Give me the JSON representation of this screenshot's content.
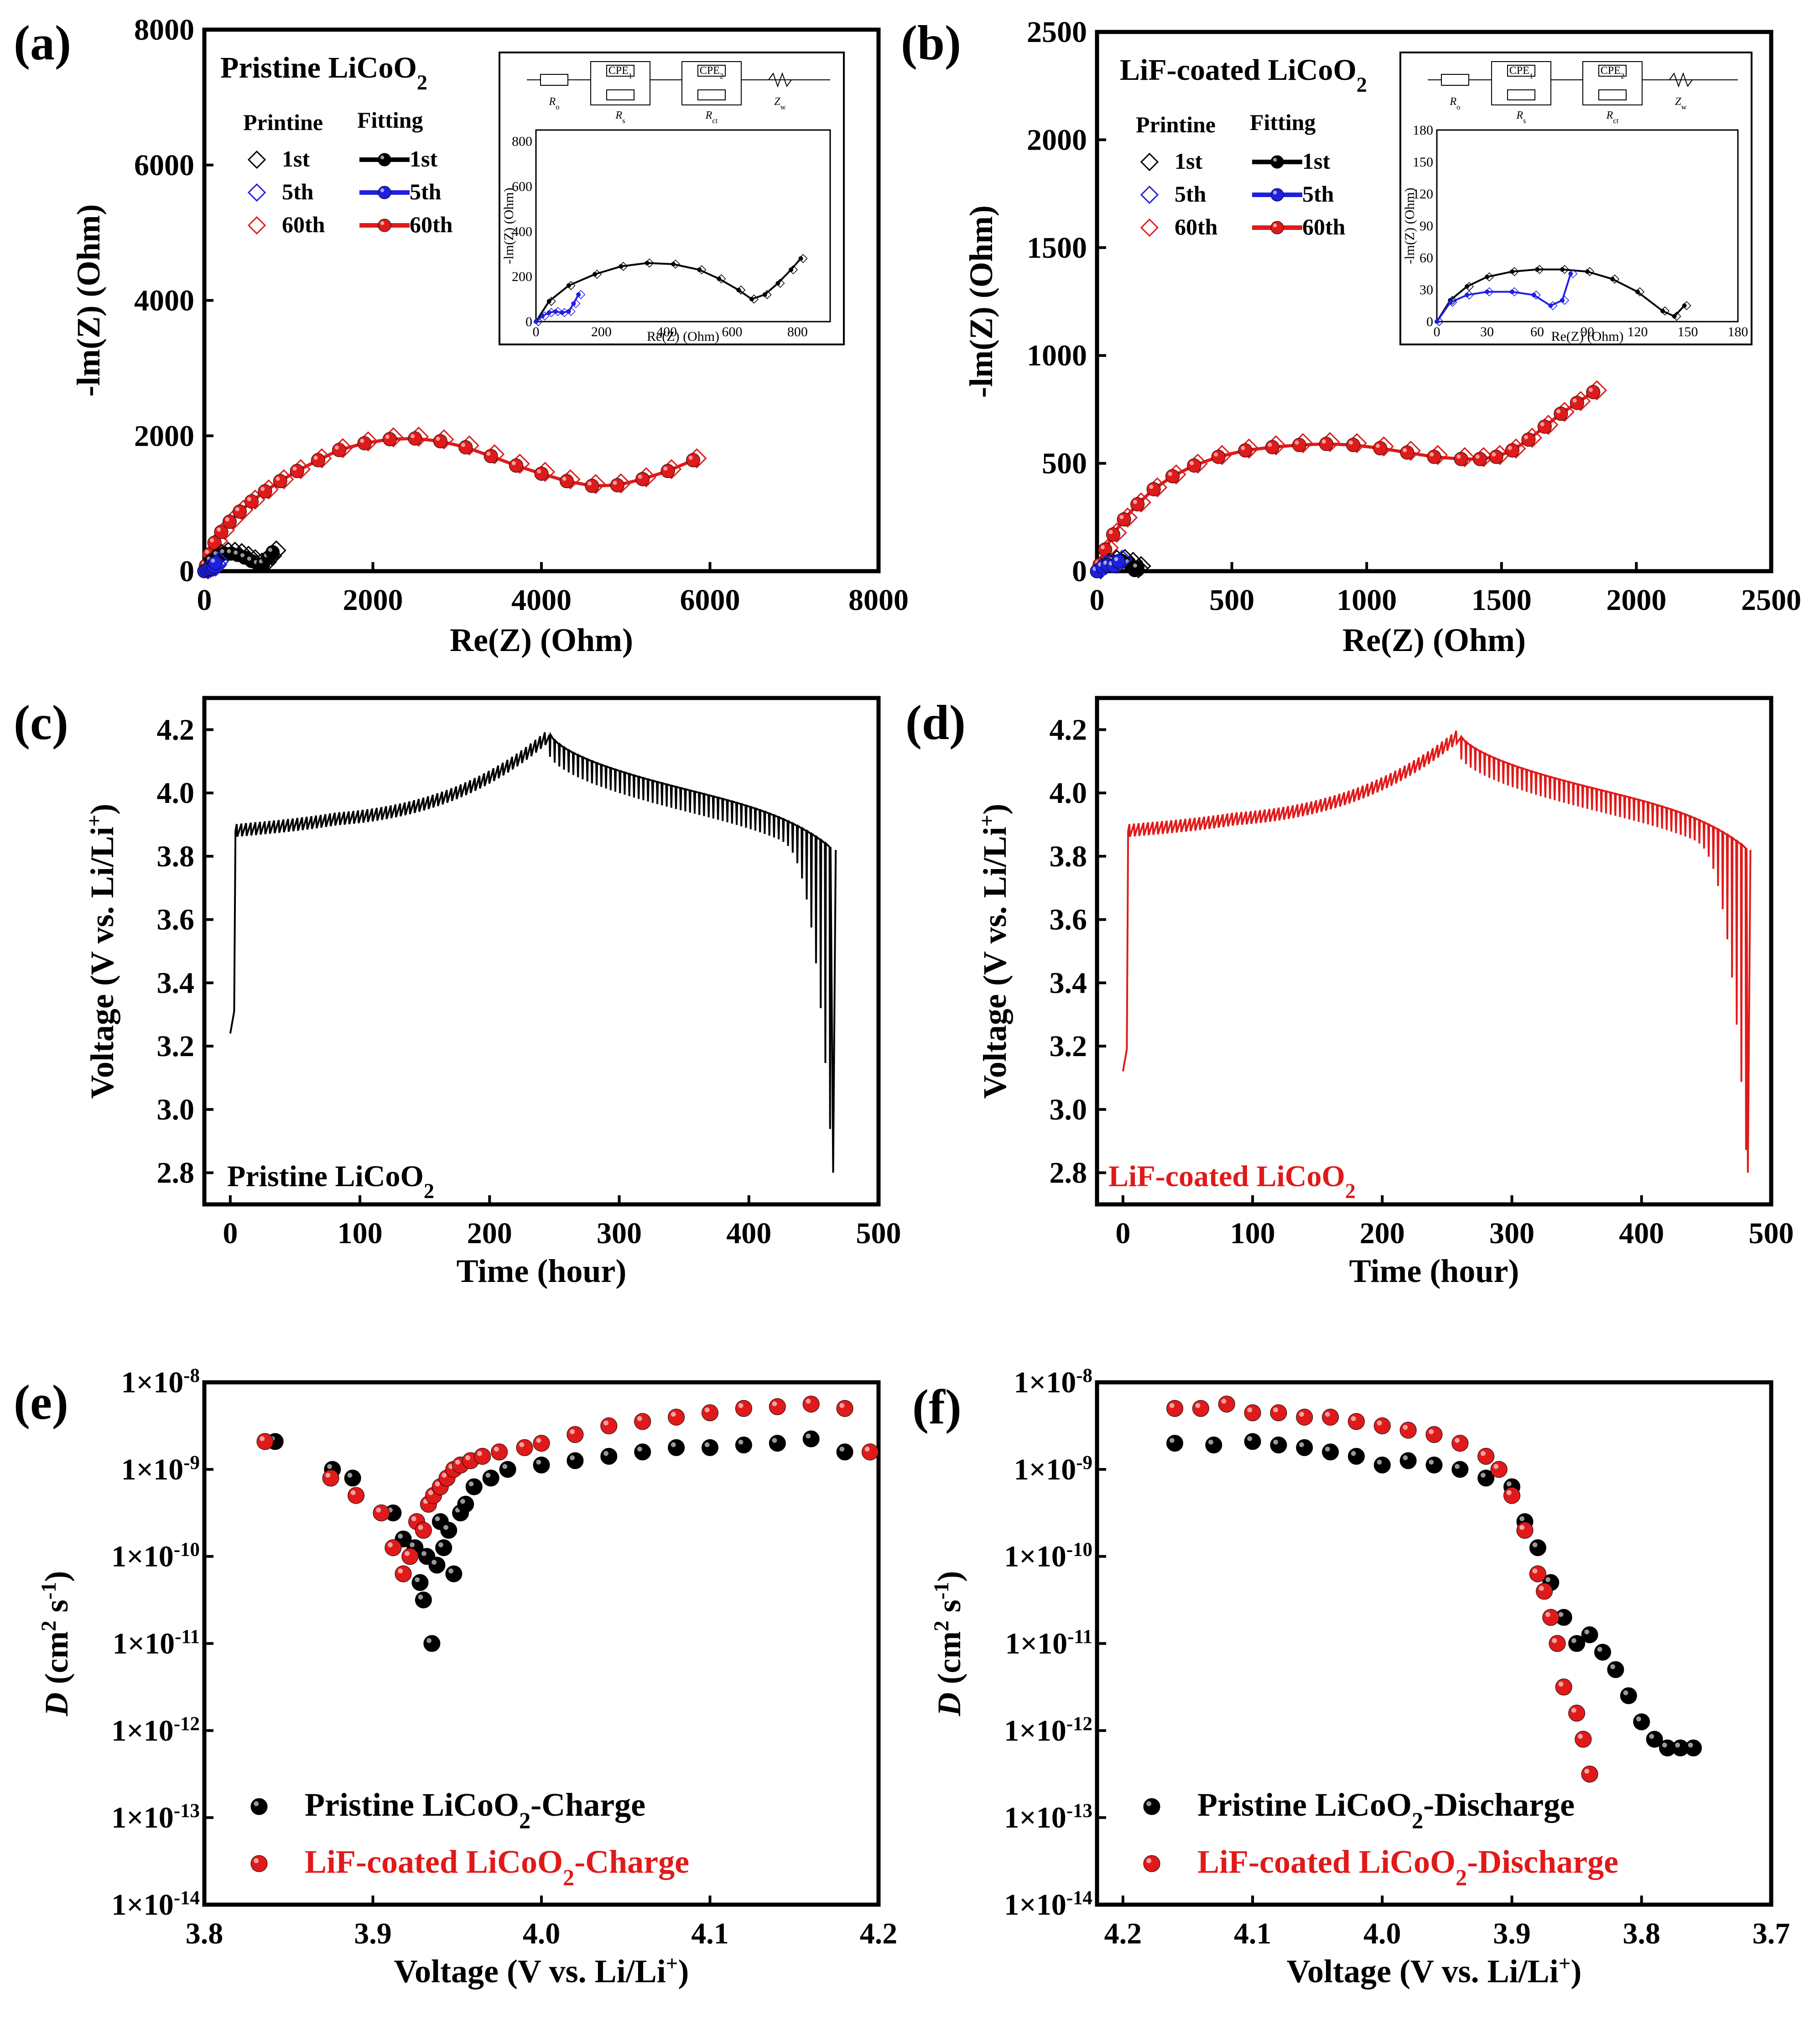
{
  "colors": {
    "black": "#000000",
    "blue": "#1f1fe0",
    "red": "#e01a1a",
    "gray": "#555555"
  },
  "chart_data": [
    {
      "panel": "(a)",
      "type": "scatter",
      "title": "Pristine LiCoO",
      "title_sub": "2",
      "xlabel": "Re(Z) (Ohm)",
      "ylabel": "-lm(Z) (Ohm)",
      "xlim": [
        0,
        8000
      ],
      "ylim": [
        0,
        8000
      ],
      "xticks": [
        "0",
        "2000",
        "4000",
        "6000",
        "8000"
      ],
      "yticks": [
        "0",
        "2000",
        "4000",
        "6000",
        "8000"
      ],
      "legend_head_data": "Printine",
      "legend_head_fit": "Fitting",
      "legend": [
        "1st",
        "5th",
        "60th"
      ],
      "series": [
        {
          "name": "60th",
          "color": "red",
          "x": [
            20,
            60,
            120,
            200,
            300,
            420,
            560,
            720,
            900,
            1100,
            1350,
            1600,
            1900,
            2200,
            2500,
            2800,
            3100,
            3400,
            3700,
            4000,
            4300,
            4600,
            4900,
            5200,
            5500,
            5800
          ],
          "y": [
            80,
            250,
            420,
            580,
            730,
            880,
            1030,
            1180,
            1330,
            1480,
            1640,
            1790,
            1890,
            1950,
            1960,
            1920,
            1830,
            1700,
            1560,
            1440,
            1330,
            1260,
            1270,
            1360,
            1480,
            1640
          ]
        },
        {
          "name": "1st",
          "color": "black",
          "x": [
            0,
            80,
            160,
            240,
            320,
            400,
            480,
            560,
            640,
            700,
            760,
            810
          ],
          "y": [
            0,
            150,
            230,
            260,
            260,
            240,
            200,
            150,
            100,
            110,
            200,
            280
          ]
        },
        {
          "name": "5th",
          "color": "blue",
          "x": [
            0,
            30,
            60,
            90,
            110,
            130
          ],
          "y": [
            0,
            20,
            35,
            40,
            70,
            120
          ]
        }
      ],
      "inset": {
        "xlabel": "Re(Z) (Ohm)",
        "ylabel": "-lm(Z) (Ohm)",
        "xticks": [
          "0",
          "200",
          "400",
          "600",
          "800"
        ],
        "yticks": [
          "0",
          "200",
          "400",
          "600",
          "800"
        ],
        "xlim": [
          0,
          900
        ],
        "ylim": [
          0,
          850
        ],
        "circuit": [
          "R",
          "o",
          "CPE",
          "1",
          "CPE",
          "2",
          "R",
          "s",
          "R",
          "ct",
          "Z",
          "w"
        ]
      }
    },
    {
      "panel": "(b)",
      "type": "scatter",
      "title": "LiF-coated LiCoO",
      "title_sub": "2",
      "xlabel": "Re(Z) (Ohm)",
      "ylabel": "-lm(Z) (Ohm)",
      "xlim": [
        0,
        2500
      ],
      "ylim": [
        0,
        2500
      ],
      "xticks": [
        "0",
        "500",
        "1000",
        "1500",
        "2000",
        "2500"
      ],
      "yticks": [
        "0",
        "500",
        "1000",
        "1500",
        "2000",
        "2500"
      ],
      "legend_head_data": "Printine",
      "legend_head_fit": "Fitting",
      "legend": [
        "1st",
        "5th",
        "60th"
      ],
      "series": [
        {
          "name": "60th",
          "color": "red",
          "x": [
            10,
            30,
            60,
            100,
            150,
            210,
            280,
            360,
            450,
            550,
            650,
            750,
            850,
            950,
            1050,
            1150,
            1250,
            1350,
            1420,
            1480,
            1540,
            1600,
            1660,
            1720,
            1780,
            1840
          ],
          "y": [
            30,
            100,
            170,
            240,
            310,
            380,
            440,
            490,
            530,
            560,
            575,
            585,
            590,
            585,
            570,
            550,
            530,
            520,
            520,
            530,
            560,
            610,
            670,
            730,
            780,
            830
          ]
        },
        {
          "name": "1st",
          "color": "black",
          "x": [
            0,
            30,
            60,
            90,
            120,
            140,
            150
          ],
          "y": [
            0,
            30,
            45,
            48,
            35,
            5,
            15
          ]
        },
        {
          "name": "5th",
          "color": "blue",
          "x": [
            0,
            20,
            40,
            60,
            80
          ],
          "y": [
            0,
            20,
            28,
            25,
            45
          ]
        }
      ],
      "inset": {
        "xlabel": "Re(Z) (Ohm)",
        "ylabel": "-lm(Z) (Ohm)",
        "xticks": [
          "0",
          "30",
          "60",
          "90",
          "120",
          "150",
          "180"
        ],
        "yticks": [
          "0",
          "30",
          "60",
          "90",
          "120",
          "150",
          "180"
        ],
        "xlim": [
          0,
          180
        ],
        "ylim": [
          0,
          180
        ],
        "circuit": [
          "R",
          "o",
          "CPE",
          "1",
          "CPE",
          "2",
          "R",
          "s",
          "R",
          "ct",
          "Z",
          "w"
        ]
      }
    },
    {
      "panel": "(c)",
      "type": "line",
      "label": "Pristine LiCoO",
      "label_sub": "2",
      "xlabel": "Time (hour)",
      "ylabel": "Voltage (V vs. Li/Li",
      "ylabel_sup": "+",
      "ylabel_end": ")",
      "xlim": [
        -20,
        500
      ],
      "ylim": [
        2.7,
        4.3
      ],
      "xticks": [
        "0",
        "100",
        "200",
        "300",
        "400",
        "500"
      ],
      "yticks": [
        "2.8",
        "3.0",
        "3.2",
        "3.4",
        "3.6",
        "3.8",
        "4.0",
        "4.2"
      ],
      "color": "black"
    },
    {
      "panel": "(d)",
      "type": "line",
      "label": "LiF-coated LiCoO",
      "label_sub": "2",
      "xlabel": "Time (hour)",
      "ylabel": "Voltage (V vs. Li/Li",
      "ylabel_sup": "+",
      "ylabel_end": ")",
      "xlim": [
        -20,
        500
      ],
      "ylim": [
        2.7,
        4.3
      ],
      "xticks": [
        "0",
        "100",
        "200",
        "300",
        "400",
        "500"
      ],
      "yticks": [
        "2.8",
        "3.0",
        "3.2",
        "3.4",
        "3.6",
        "3.8",
        "4.0",
        "4.2"
      ],
      "color": "red"
    },
    {
      "panel": "(e)",
      "type": "scatter",
      "xlabel": "Voltage (V vs. Li/Li",
      "xlabel_sup": "+",
      "xlabel_end": ")",
      "ylabel": "D (cm",
      "ylabel_sup": "2",
      "ylabel_mid": " s",
      "ylabel_sup2": "-1",
      "ylabel_end": ")",
      "xlim": [
        3.8,
        4.2
      ],
      "ylim_log": [
        -14,
        -8
      ],
      "xticks": [
        "3.8",
        "3.9",
        "4.0",
        "4.1",
        "4.2"
      ],
      "yticks": [
        "1×10",
        "1×10",
        "1×10",
        "1×10",
        "1×10",
        "1×10",
        "1×10"
      ],
      "yticks_exp": [
        "-14",
        "-13",
        "-12",
        "-11",
        "-10",
        "-9",
        "-8"
      ],
      "legend": [
        "Pristine LiCoO",
        "LiF-coated LiCoO"
      ],
      "legend_sub": "2",
      "legend_suffix": "-Charge",
      "series": [
        {
          "name": "Pristine LiCoO2-Charge",
          "color": "black",
          "x": [
            3.842,
            3.876,
            3.888,
            3.912,
            3.918,
            3.925,
            3.928,
            3.93,
            3.932,
            3.935,
            3.938,
            3.94,
            3.942,
            3.945,
            3.948,
            3.952,
            3.955,
            3.96,
            3.97,
            3.98,
            4.0,
            4.02,
            4.04,
            4.06,
            4.08,
            4.1,
            4.12,
            4.14,
            4.16,
            4.18
          ],
          "y": [
            -8.68,
            -9.0,
            -9.1,
            -9.5,
            -9.8,
            -9.9,
            -10.3,
            -10.5,
            -10.0,
            -11.0,
            -10.1,
            -9.6,
            -9.9,
            -9.7,
            -10.2,
            -9.5,
            -9.4,
            -9.2,
            -9.1,
            -9.0,
            -8.95,
            -8.9,
            -8.85,
            -8.8,
            -8.75,
            -8.75,
            -8.72,
            -8.7,
            -8.65,
            -8.8
          ]
        },
        {
          "name": "LiF-coated LiCoO2-Charge",
          "color": "red",
          "x": [
            3.836,
            3.875,
            3.89,
            3.905,
            3.912,
            3.918,
            3.922,
            3.926,
            3.93,
            3.933,
            3.936,
            3.94,
            3.944,
            3.948,
            3.952,
            3.958,
            3.965,
            3.975,
            3.99,
            4.0,
            4.02,
            4.04,
            4.06,
            4.08,
            4.1,
            4.12,
            4.14,
            4.16,
            4.18,
            4.195
          ],
          "y": [
            -8.68,
            -9.1,
            -9.3,
            -9.5,
            -9.9,
            -10.2,
            -10.0,
            -9.6,
            -9.7,
            -9.4,
            -9.3,
            -9.2,
            -9.1,
            -9.0,
            -8.95,
            -8.9,
            -8.85,
            -8.8,
            -8.75,
            -8.7,
            -8.6,
            -8.5,
            -8.45,
            -8.4,
            -8.35,
            -8.3,
            -8.28,
            -8.25,
            -8.3,
            -8.8
          ]
        }
      ]
    },
    {
      "panel": "(f)",
      "type": "scatter",
      "xlabel": "Voltage (V vs. Li/Li",
      "xlabel_sup": "+",
      "xlabel_end": ")",
      "ylabel": "D (cm",
      "ylabel_sup": "2",
      "ylabel_mid": " s",
      "ylabel_sup2": "-1",
      "ylabel_end": ")",
      "xlim": [
        4.22,
        3.7
      ],
      "ylim_log": [
        -14,
        -8
      ],
      "xticks": [
        "4.2",
        "4.1",
        "4.0",
        "3.9",
        "3.8",
        "3.7"
      ],
      "yticks": [
        "1×10",
        "1×10",
        "1×10",
        "1×10",
        "1×10",
        "1×10",
        "1×10"
      ],
      "yticks_exp": [
        "-14",
        "-13",
        "-12",
        "-11",
        "-10",
        "-9",
        "-8"
      ],
      "legend": [
        "Pristine LiCoO",
        "LiF-coated LiCoO"
      ],
      "legend_sub": "2",
      "legend_suffix": "-Discharge",
      "series": [
        {
          "name": "Pristine LiCoO2-Discharge",
          "color": "black",
          "x": [
            4.16,
            4.13,
            4.1,
            4.08,
            4.06,
            4.04,
            4.02,
            4.0,
            3.98,
            3.96,
            3.94,
            3.92,
            3.9,
            3.89,
            3.88,
            3.87,
            3.86,
            3.85,
            3.84,
            3.83,
            3.82,
            3.81,
            3.8,
            3.79,
            3.78,
            3.77,
            3.76
          ],
          "y": [
            -8.7,
            -8.72,
            -8.68,
            -8.72,
            -8.75,
            -8.8,
            -8.85,
            -8.95,
            -8.9,
            -8.95,
            -9.0,
            -9.1,
            -9.2,
            -9.6,
            -9.9,
            -10.3,
            -10.7,
            -11.0,
            -10.9,
            -11.1,
            -11.3,
            -11.6,
            -11.9,
            -12.1,
            -12.2,
            -12.2,
            -12.2
          ]
        },
        {
          "name": "LiF-coated LiCoO2-Discharge",
          "color": "red",
          "x": [
            4.16,
            4.14,
            4.12,
            4.1,
            4.08,
            4.06,
            4.04,
            4.02,
            4.0,
            3.98,
            3.96,
            3.94,
            3.92,
            3.91,
            3.9,
            3.89,
            3.88,
            3.875,
            3.87,
            3.865,
            3.86,
            3.85,
            3.845,
            3.84
          ],
          "y": [
            -8.3,
            -8.3,
            -8.25,
            -8.35,
            -8.35,
            -8.4,
            -8.4,
            -8.45,
            -8.5,
            -8.55,
            -8.6,
            -8.7,
            -8.85,
            -9.0,
            -9.3,
            -9.7,
            -10.2,
            -10.4,
            -10.7,
            -11.0,
            -11.5,
            -11.8,
            -12.1,
            -12.5
          ]
        }
      ]
    }
  ]
}
